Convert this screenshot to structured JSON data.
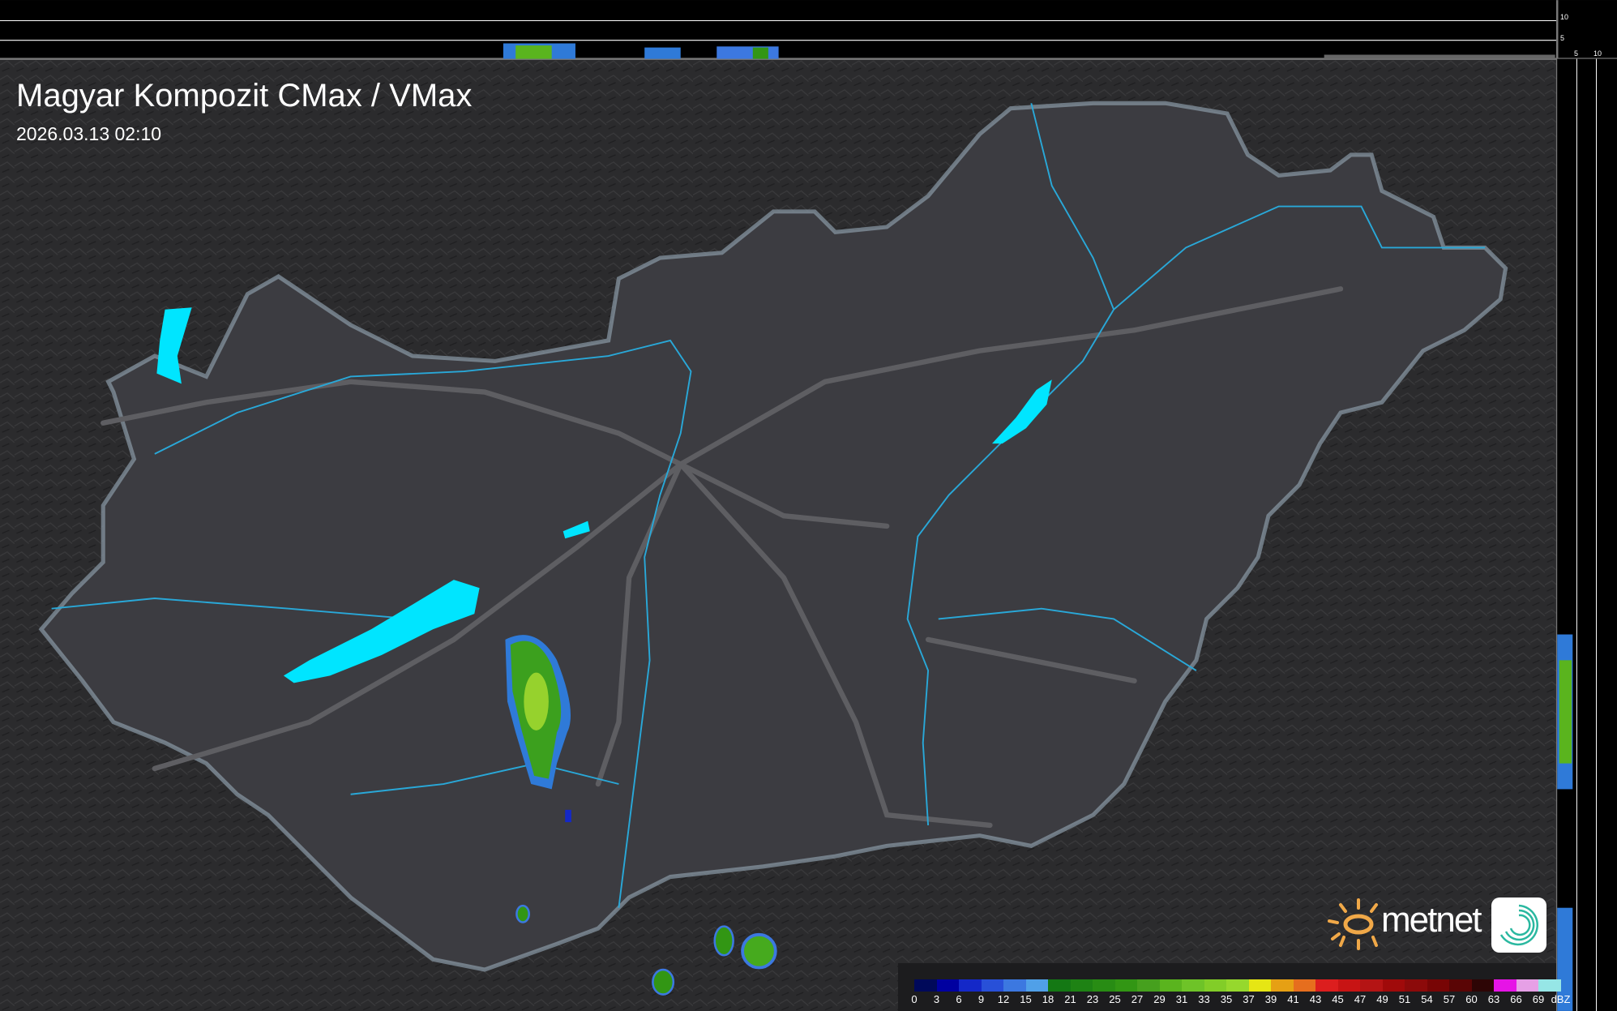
{
  "header": {
    "title": "Magyar Kompozit CMax / VMax",
    "timestamp": "2026.03.13 02:10"
  },
  "profile_axes": {
    "top_ticks": [
      "10",
      "5"
    ],
    "side_ticks": [
      "5",
      "10"
    ]
  },
  "legend": {
    "unit": "dBZ",
    "labels": [
      "0",
      "3",
      "6",
      "9",
      "12",
      "15",
      "18",
      "21",
      "23",
      "25",
      "27",
      "29",
      "31",
      "33",
      "35",
      "37",
      "39",
      "41",
      "43",
      "45",
      "47",
      "49",
      "51",
      "54",
      "57",
      "60",
      "63",
      "66",
      "69"
    ],
    "colors": [
      "#00095a",
      "#0000a0",
      "#1428c8",
      "#2850d8",
      "#3c78e0",
      "#50a0e8",
      "#147814",
      "#1e8214",
      "#288c14",
      "#329614",
      "#46a01e",
      "#5ab41e",
      "#6ec328",
      "#82cd28",
      "#96d82d",
      "#e6e614",
      "#e6a014",
      "#e66e1e",
      "#dc1e1e",
      "#c81414",
      "#b41414",
      "#a00a0a",
      "#8c0a0a",
      "#780505",
      "#5a0505",
      "#2d0505",
      "#e614e6",
      "#e6a0e6",
      "#96e6e6"
    ]
  },
  "logo": {
    "brand": "metnet"
  },
  "colors": {
    "lakes": "#00e5ff",
    "rivers": "#29a8d8",
    "border": "#8a9aa6",
    "roads": "#5a5a5e",
    "land": "#3a3a3e"
  }
}
